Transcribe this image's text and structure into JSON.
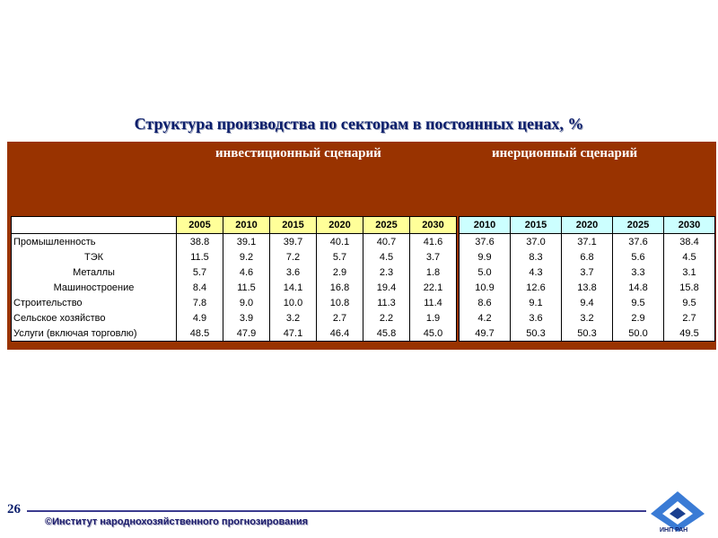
{
  "title": "Структура  производства по секторам в постоянных ценах, %",
  "scenarios": {
    "investment": "инвестиционный сценарий",
    "inertia": "инерционный сценарий"
  },
  "table": {
    "investment_years": [
      "2005",
      "2010",
      "2015",
      "2020",
      "2025",
      "2030"
    ],
    "inertia_years": [
      "2010",
      "2015",
      "2020",
      "2025",
      "2030"
    ],
    "rows": [
      {
        "label": "Промышленность",
        "indent": false,
        "investment": [
          "38.8",
          "39.1",
          "39.7",
          "40.1",
          "40.7",
          "41.6"
        ],
        "inertia": [
          "37.6",
          "37.0",
          "37.1",
          "37.6",
          "38.4"
        ]
      },
      {
        "label": "ТЭК",
        "indent": true,
        "investment": [
          "11.5",
          "9.2",
          "7.2",
          "5.7",
          "4.5",
          "3.7"
        ],
        "inertia": [
          "9.9",
          "8.3",
          "6.8",
          "5.6",
          "4.5"
        ]
      },
      {
        "label": "Металлы",
        "indent": true,
        "investment": [
          "5.7",
          "4.6",
          "3.6",
          "2.9",
          "2.3",
          "1.8"
        ],
        "inertia": [
          "5.0",
          "4.3",
          "3.7",
          "3.3",
          "3.1"
        ]
      },
      {
        "label": "Машиностроение",
        "indent": true,
        "investment": [
          "8.4",
          "11.5",
          "14.1",
          "16.8",
          "19.4",
          "22.1"
        ],
        "inertia": [
          "10.9",
          "12.6",
          "13.8",
          "14.8",
          "15.8"
        ]
      },
      {
        "label": "Строительство",
        "indent": false,
        "investment": [
          "7.8",
          "9.0",
          "10.0",
          "10.8",
          "11.3",
          "11.4"
        ],
        "inertia": [
          "8.6",
          "9.1",
          "9.4",
          "9.5",
          "9.5"
        ]
      },
      {
        "label": "Сельское хозяйство",
        "indent": false,
        "investment": [
          "4.9",
          "3.9",
          "3.2",
          "2.7",
          "2.2",
          "1.9"
        ],
        "inertia": [
          "4.2",
          "3.6",
          "3.2",
          "2.9",
          "2.7"
        ]
      },
      {
        "label": "Услуги (включая торговлю)",
        "indent": false,
        "investment": [
          "48.5",
          "47.9",
          "47.1",
          "46.4",
          "45.8",
          "45.0"
        ],
        "inertia": [
          "49.7",
          "50.3",
          "50.3",
          "50.0",
          "49.5"
        ]
      }
    ]
  },
  "page_number": "26",
  "footer": "©Институт  народнохозяйственного  прогнозирования",
  "logo_text": "ИНП РАН",
  "colors": {
    "panel": "#993300",
    "title": "#0a1d6b",
    "investment_header": "#ffff99",
    "inertia_header": "#ccffff"
  }
}
